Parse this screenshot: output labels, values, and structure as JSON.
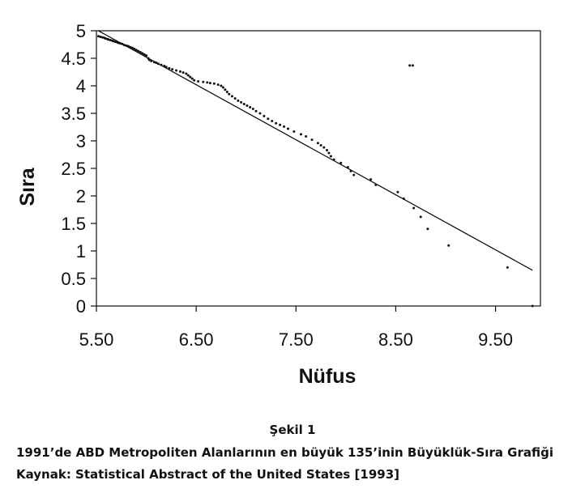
{
  "chart_data": {
    "type": "scatter",
    "xlabel": "Nüfus",
    "ylabel": "Sıra",
    "xlim": [
      5.5,
      9.95
    ],
    "ylim": [
      0,
      5
    ],
    "x_ticks": [
      5.5,
      6.5,
      7.5,
      8.5,
      9.5
    ],
    "x_tick_labels": [
      "5.50",
      "6.50",
      "7.50",
      "8.50",
      "9.50"
    ],
    "y_ticks": [
      0,
      0.5,
      1,
      1.5,
      2,
      2.5,
      3,
      3.5,
      4,
      4.5,
      5
    ],
    "y_tick_labels": [
      "0",
      "0.5",
      "1",
      "1.5",
      "2",
      "2.5",
      "3",
      "3.5",
      "4",
      "4.5",
      "5"
    ],
    "grid": false,
    "fit_line": {
      "x": [
        5.52,
        9.87
      ],
      "y": [
        5.0,
        0.65
      ]
    },
    "points": [
      [
        5.52,
        4.9
      ],
      [
        5.54,
        4.89
      ],
      [
        5.56,
        4.88
      ],
      [
        5.58,
        4.87
      ],
      [
        5.59,
        4.86
      ],
      [
        5.61,
        4.85
      ],
      [
        5.62,
        4.84
      ],
      [
        5.64,
        4.83
      ],
      [
        5.66,
        4.82
      ],
      [
        5.67,
        4.81
      ],
      [
        5.69,
        4.8
      ],
      [
        5.71,
        4.79
      ],
      [
        5.72,
        4.78
      ],
      [
        5.74,
        4.77
      ],
      [
        5.76,
        4.76
      ],
      [
        5.78,
        4.74
      ],
      [
        5.8,
        4.73
      ],
      [
        5.82,
        4.72
      ],
      [
        5.84,
        4.7
      ],
      [
        5.86,
        4.69
      ],
      [
        5.88,
        4.67
      ],
      [
        5.9,
        4.65
      ],
      [
        5.92,
        4.63
      ],
      [
        5.94,
        4.61
      ],
      [
        5.96,
        4.59
      ],
      [
        5.98,
        4.57
      ],
      [
        6.0,
        4.55
      ],
      [
        6.02,
        4.5
      ],
      [
        6.03,
        4.47
      ],
      [
        6.05,
        4.45
      ],
      [
        6.08,
        4.43
      ],
      [
        6.1,
        4.42
      ],
      [
        6.12,
        4.4
      ],
      [
        6.15,
        4.38
      ],
      [
        6.18,
        4.36
      ],
      [
        6.2,
        4.34
      ],
      [
        6.23,
        4.32
      ],
      [
        6.26,
        4.3
      ],
      [
        6.3,
        4.28
      ],
      [
        6.34,
        4.26
      ],
      [
        6.37,
        4.24
      ],
      [
        6.4,
        4.22
      ],
      [
        6.42,
        4.19
      ],
      [
        6.44,
        4.16
      ],
      [
        6.46,
        4.13
      ],
      [
        6.48,
        4.1
      ],
      [
        6.52,
        4.08
      ],
      [
        6.57,
        4.07
      ],
      [
        6.61,
        4.06
      ],
      [
        6.64,
        4.05
      ],
      [
        6.68,
        4.04
      ],
      [
        6.72,
        4.02
      ],
      [
        6.75,
        4.0
      ],
      [
        6.77,
        3.97
      ],
      [
        6.79,
        3.93
      ],
      [
        6.81,
        3.89
      ],
      [
        6.83,
        3.85
      ],
      [
        6.86,
        3.81
      ],
      [
        6.89,
        3.77
      ],
      [
        6.92,
        3.73
      ],
      [
        6.95,
        3.7
      ],
      [
        6.98,
        3.67
      ],
      [
        7.01,
        3.64
      ],
      [
        7.04,
        3.61
      ],
      [
        7.07,
        3.58
      ],
      [
        7.1,
        3.54
      ],
      [
        7.14,
        3.5
      ],
      [
        7.18,
        3.45
      ],
      [
        7.22,
        3.4
      ],
      [
        7.26,
        3.36
      ],
      [
        7.3,
        3.32
      ],
      [
        7.34,
        3.29
      ],
      [
        7.38,
        3.26
      ],
      [
        7.42,
        3.22
      ],
      [
        7.48,
        3.17
      ],
      [
        7.55,
        3.12
      ],
      [
        7.6,
        3.08
      ],
      [
        7.66,
        3.02
      ],
      [
        7.72,
        2.96
      ],
      [
        7.75,
        2.92
      ],
      [
        7.78,
        2.88
      ],
      [
        7.81,
        2.83
      ],
      [
        7.83,
        2.78
      ],
      [
        7.85,
        2.72
      ],
      [
        7.88,
        2.66
      ],
      [
        7.95,
        2.6
      ],
      [
        8.02,
        2.52
      ],
      [
        8.05,
        2.45
      ],
      [
        8.08,
        2.38
      ],
      [
        8.25,
        2.3
      ],
      [
        8.3,
        2.2
      ],
      [
        8.52,
        2.07
      ],
      [
        8.58,
        1.95
      ],
      [
        8.68,
        1.78
      ],
      [
        8.75,
        1.62
      ],
      [
        8.82,
        1.4
      ],
      [
        9.03,
        1.1
      ],
      [
        9.62,
        0.7
      ],
      [
        9.87,
        0.0
      ],
      [
        8.64,
        4.37
      ],
      [
        8.67,
        4.37
      ]
    ]
  },
  "captions": {
    "figure_label": "Şekil 1",
    "title": "1991’de ABD Metropoliten Alanlarının en büyük 135’inin Büyüklük-Sıra Grafiği",
    "source": "Kaynak: Statistical Abstract of the United States [1993]"
  }
}
